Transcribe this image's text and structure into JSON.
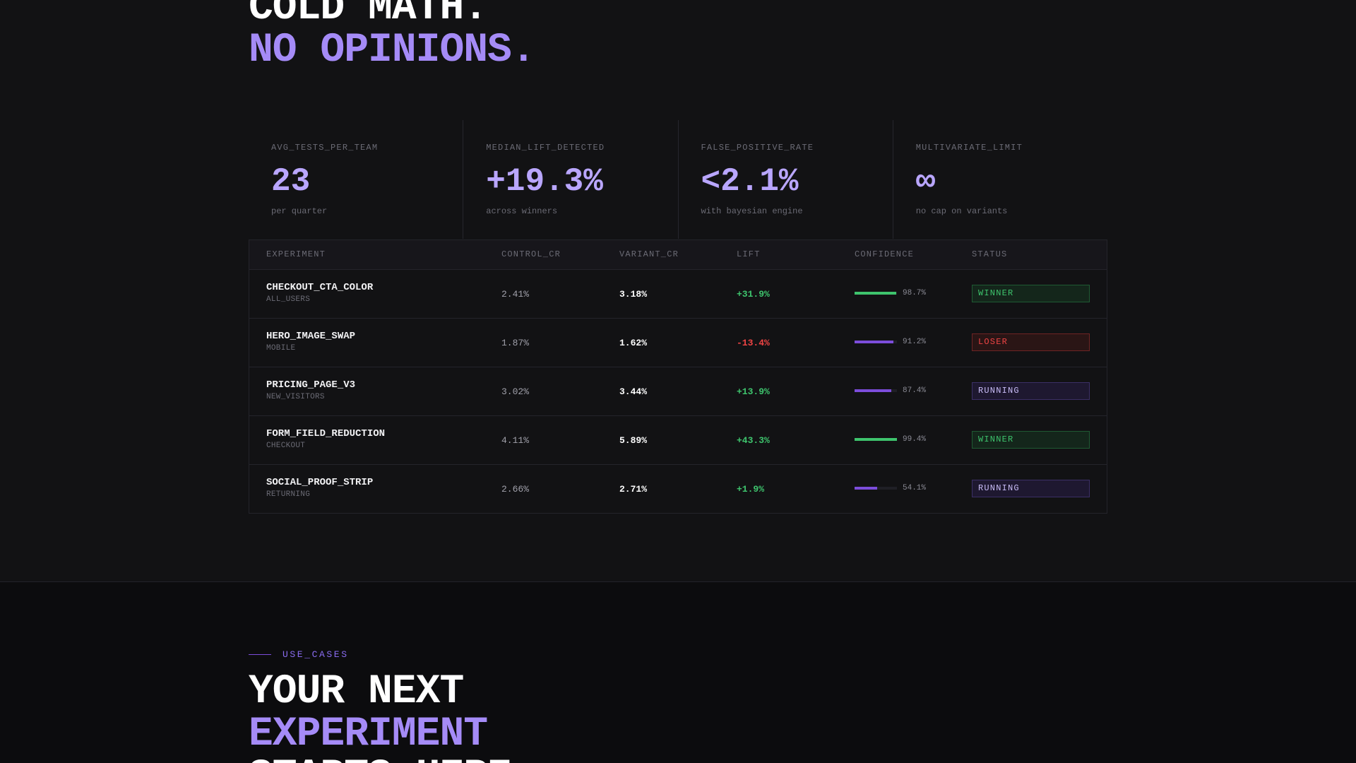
{
  "hero": {
    "line1": "COLD MATH.",
    "line2": "NO OPINIONS."
  },
  "stats": [
    {
      "label": "AVG_TESTS_PER_TEAM",
      "value": "23",
      "sub": "per quarter"
    },
    {
      "label": "MEDIAN_LIFT_DETECTED",
      "value": "+19.3%",
      "sub": "across winners"
    },
    {
      "label": "FALSE_POSITIVE_RATE",
      "value": "<2.1%",
      "sub": "with bayesian engine"
    },
    {
      "label": "MULTIVARIATE_LIMIT",
      "value": "∞",
      "sub": "no cap on variants"
    }
  ],
  "table": {
    "headers": {
      "experiment": "EXPERIMENT",
      "control": "CONTROL_CR",
      "variant": "VARIANT_CR",
      "lift": "LIFT",
      "confidence": "CONFIDENCE",
      "status": "STATUS"
    },
    "rows": [
      {
        "name": "CHECKOUT_CTA_COLOR",
        "segment": "ALL_USERS",
        "control": "2.41%",
        "variant": "3.18%",
        "lift": "+31.9%",
        "lift_sign": "pos",
        "confidence": "98.7%",
        "confidence_value": 0.987,
        "bar_color": "green",
        "status": "WINNER",
        "status_kind": "winner"
      },
      {
        "name": "HERO_IMAGE_SWAP",
        "segment": "MOBILE",
        "control": "1.87%",
        "variant": "1.62%",
        "lift": "-13.4%",
        "lift_sign": "neg",
        "confidence": "91.2%",
        "confidence_value": 0.912,
        "bar_color": "purple",
        "status": "LOSER",
        "status_kind": "loser"
      },
      {
        "name": "PRICING_PAGE_V3",
        "segment": "NEW_VISITORS",
        "control": "3.02%",
        "variant": "3.44%",
        "lift": "+13.9%",
        "lift_sign": "pos",
        "confidence": "87.4%",
        "confidence_value": 0.874,
        "bar_color": "purple",
        "status": "RUNNING",
        "status_kind": "running"
      },
      {
        "name": "FORM_FIELD_REDUCTION",
        "segment": "CHECKOUT",
        "control": "4.11%",
        "variant": "5.89%",
        "lift": "+43.3%",
        "lift_sign": "pos",
        "confidence": "99.4%",
        "confidence_value": 0.994,
        "bar_color": "green",
        "status": "WINNER",
        "status_kind": "winner"
      },
      {
        "name": "SOCIAL_PROOF_STRIP",
        "segment": "RETURNING",
        "control": "2.66%",
        "variant": "2.71%",
        "lift": "+1.9%",
        "lift_sign": "pos",
        "confidence": "54.1%",
        "confidence_value": 0.541,
        "bar_color": "purple",
        "status": "RUNNING",
        "status_kind": "running"
      }
    ]
  },
  "use_cases": {
    "eyebrow": "USE_CASES",
    "line1": "YOUR NEXT",
    "line2": "EXPERIMENT",
    "line3": "STARTS HERE"
  },
  "colors": {
    "accent": "#a58bf7",
    "positive": "#3ec46d",
    "negative": "#ef4444",
    "background": "#121214"
  }
}
